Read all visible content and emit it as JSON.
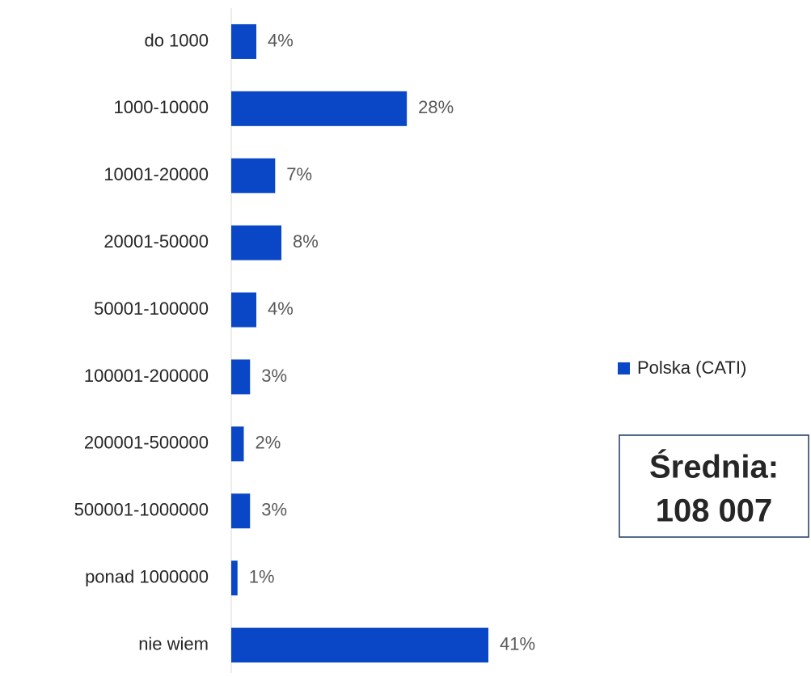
{
  "chart_data": {
    "type": "bar",
    "orientation": "horizontal",
    "categories": [
      "do 1000",
      "1000-10000",
      "10001-20000",
      "20001-50000",
      "50001-100000",
      "100001-200000",
      "200001-500000",
      "500001-1000000",
      "ponad 1000000",
      "nie wiem"
    ],
    "series": [
      {
        "name": "Polska (CATI)",
        "color": "#0a47c6",
        "values": [
          4,
          28,
          7,
          8,
          4,
          3,
          2,
          3,
          1,
          41
        ],
        "value_labels": [
          "4%",
          "28%",
          "7%",
          "8%",
          "4%",
          "3%",
          "2%",
          "3%",
          "1%",
          "41%"
        ]
      }
    ],
    "xlim": [
      0,
      41
    ],
    "legend": "right",
    "annotation": [
      "Średnia:",
      "108 007"
    ]
  }
}
